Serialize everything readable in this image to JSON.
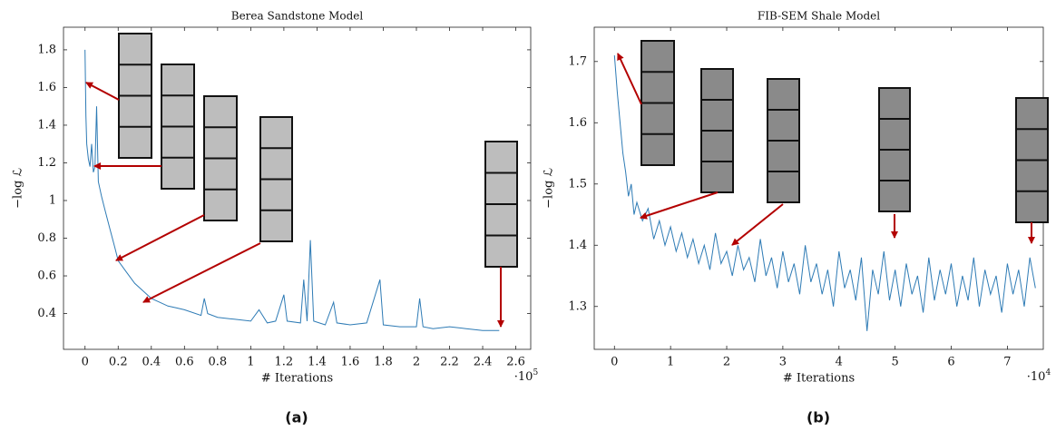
{
  "chart_data": [
    {
      "type": "line",
      "title": "Berea Sandstone Model",
      "xlabel": "# Iterations",
      "ylabel": "−log ℒ",
      "x_multiplier": "·10",
      "x_multiplier_exponent": "5",
      "caption": "(a)",
      "color": "#2e7bb5",
      "xlim": [
        -0.13,
        2.69
      ],
      "ylim": [
        0.21,
        1.92
      ],
      "xticks": [
        0,
        0.2,
        0.4,
        0.6,
        0.8,
        1,
        1.2,
        1.4,
        1.6,
        1.8,
        2,
        2.2,
        2.4,
        2.6
      ],
      "yticks": [
        0.4,
        0.6,
        0.8,
        1,
        1.2,
        1.4,
        1.6,
        1.8
      ],
      "x": [
        0,
        0.005,
        0.01,
        0.02,
        0.03,
        0.04,
        0.05,
        0.06,
        0.07,
        0.08,
        0.1,
        0.12,
        0.15,
        0.18,
        0.2,
        0.25,
        0.3,
        0.35,
        0.4,
        0.45,
        0.5,
        0.55,
        0.6,
        0.7,
        0.72,
        0.74,
        0.8,
        0.9,
        1.0,
        1.05,
        1.1,
        1.15,
        1.2,
        1.22,
        1.3,
        1.32,
        1.34,
        1.36,
        1.38,
        1.45,
        1.5,
        1.52,
        1.6,
        1.7,
        1.78,
        1.8,
        1.9,
        2.0,
        2.02,
        2.04,
        2.1,
        2.2,
        2.3,
        2.4,
        2.5
      ],
      "values": [
        1.8,
        1.45,
        1.3,
        1.22,
        1.18,
        1.3,
        1.15,
        1.18,
        1.5,
        1.1,
        1.02,
        0.95,
        0.85,
        0.75,
        0.68,
        0.62,
        0.56,
        0.52,
        0.48,
        0.46,
        0.44,
        0.43,
        0.42,
        0.39,
        0.48,
        0.4,
        0.38,
        0.37,
        0.36,
        0.42,
        0.35,
        0.36,
        0.5,
        0.36,
        0.35,
        0.58,
        0.36,
        0.79,
        0.36,
        0.34,
        0.46,
        0.35,
        0.34,
        0.35,
        0.58,
        0.34,
        0.33,
        0.33,
        0.48,
        0.33,
        0.32,
        0.33,
        0.32,
        0.31,
        0.31
      ]
    },
    {
      "type": "line",
      "title": "FIB-SEM Shale Model",
      "xlabel": "# Iterations",
      "ylabel": "−log ℒ",
      "x_multiplier": "·10",
      "x_multiplier_exponent": "4",
      "caption": "(b)",
      "color": "#2e7bb5",
      "xlim": [
        -0.36,
        7.64
      ],
      "ylim": [
        1.23,
        1.756
      ],
      "xticks": [
        0,
        1,
        2,
        3,
        4,
        5,
        6,
        7
      ],
      "yticks": [
        1.3,
        1.4,
        1.5,
        1.6,
        1.7
      ],
      "x": [
        0,
        0.05,
        0.1,
        0.15,
        0.2,
        0.25,
        0.3,
        0.35,
        0.4,
        0.5,
        0.6,
        0.7,
        0.8,
        0.9,
        1.0,
        1.1,
        1.2,
        1.3,
        1.4,
        1.5,
        1.6,
        1.7,
        1.8,
        1.9,
        2.0,
        2.1,
        2.2,
        2.3,
        2.4,
        2.5,
        2.6,
        2.7,
        2.8,
        2.9,
        3.0,
        3.1,
        3.2,
        3.3,
        3.4,
        3.5,
        3.6,
        3.7,
        3.8,
        3.9,
        4.0,
        4.1,
        4.2,
        4.3,
        4.4,
        4.5,
        4.6,
        4.7,
        4.8,
        4.9,
        5.0,
        5.1,
        5.2,
        5.3,
        5.4,
        5.5,
        5.6,
        5.7,
        5.8,
        5.9,
        6.0,
        6.1,
        6.2,
        6.3,
        6.4,
        6.5,
        6.6,
        6.7,
        6.8,
        6.9,
        7.0,
        7.1,
        7.2,
        7.3,
        7.4,
        7.5
      ],
      "values": [
        1.71,
        1.65,
        1.6,
        1.55,
        1.52,
        1.48,
        1.5,
        1.45,
        1.47,
        1.44,
        1.46,
        1.41,
        1.44,
        1.4,
        1.43,
        1.39,
        1.42,
        1.38,
        1.41,
        1.37,
        1.4,
        1.36,
        1.42,
        1.37,
        1.39,
        1.35,
        1.4,
        1.36,
        1.38,
        1.34,
        1.41,
        1.35,
        1.38,
        1.33,
        1.39,
        1.34,
        1.37,
        1.32,
        1.4,
        1.34,
        1.37,
        1.32,
        1.36,
        1.3,
        1.39,
        1.33,
        1.36,
        1.31,
        1.38,
        1.26,
        1.36,
        1.32,
        1.39,
        1.31,
        1.36,
        1.3,
        1.37,
        1.32,
        1.35,
        1.29,
        1.38,
        1.31,
        1.36,
        1.32,
        1.37,
        1.3,
        1.35,
        1.31,
        1.38,
        1.3,
        1.36,
        1.32,
        1.35,
        1.29,
        1.37,
        1.32,
        1.36,
        1.3,
        1.38,
        1.33
      ]
    }
  ]
}
